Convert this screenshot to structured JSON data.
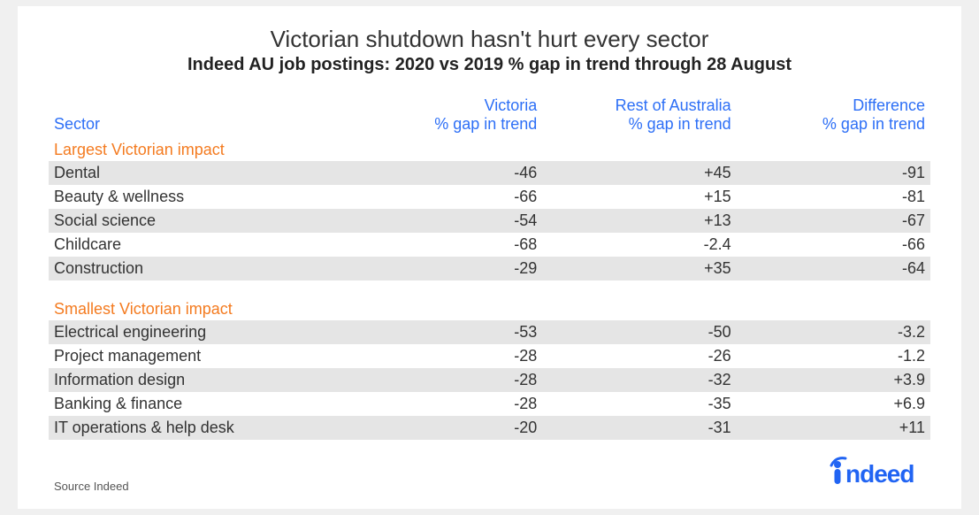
{
  "title": "Victorian shutdown hasn't hurt every sector",
  "subtitle": "Indeed AU job postings: 2020 vs 2019 % gap in trend through 28 August",
  "columns": {
    "sector": "Sector",
    "vic_l1": "Victoria",
    "vic_l2": "% gap in trend",
    "rest_l1": "Rest of Australia",
    "rest_l2": "% gap in trend",
    "diff_l1": "Difference",
    "diff_l2": "% gap in trend"
  },
  "group1_label": "Largest Victorian impact",
  "group1": [
    {
      "sector": "Dental",
      "vic": "-46",
      "rest": "+45",
      "diff": "-91"
    },
    {
      "sector": "Beauty & wellness",
      "vic": "-66",
      "rest": "+15",
      "diff": "-81"
    },
    {
      "sector": "Social science",
      "vic": "-54",
      "rest": "+13",
      "diff": "-67"
    },
    {
      "sector": "Childcare",
      "vic": "-68",
      "rest": "-2.4",
      "diff": "-66"
    },
    {
      "sector": "Construction",
      "vic": "-29",
      "rest": "+35",
      "diff": "-64"
    }
  ],
  "group2_label": "Smallest Victorian impact",
  "group2": [
    {
      "sector": "Electrical engineering",
      "vic": "-53",
      "rest": "-50",
      "diff": "-3.2"
    },
    {
      "sector": "Project management",
      "vic": "-28",
      "rest": "-26",
      "diff": "-1.2"
    },
    {
      "sector": "Information design",
      "vic": "-28",
      "rest": "-32",
      "diff": "+3.9"
    },
    {
      "sector": "Banking & finance",
      "vic": "-28",
      "rest": "-35",
      "diff": "+6.9"
    },
    {
      "sector": "IT operations & help desk",
      "vic": "-20",
      "rest": "-31",
      "diff": "+11"
    }
  ],
  "source": "Source Indeed",
  "logo": "indeed",
  "style": {
    "card_bg": "#ffffff",
    "page_bg": "#f0f0f0",
    "header_color": "#2d6ff6",
    "group_label_color": "#f47b20",
    "stripe_color": "#e5e5e5",
    "text_color": "#333333",
    "logo_color": "#2164f3",
    "title_fontsize": 26,
    "subtitle_fontsize": 20,
    "body_fontsize": 18,
    "col_widths_pct": [
      34,
      22,
      22,
      22
    ]
  }
}
